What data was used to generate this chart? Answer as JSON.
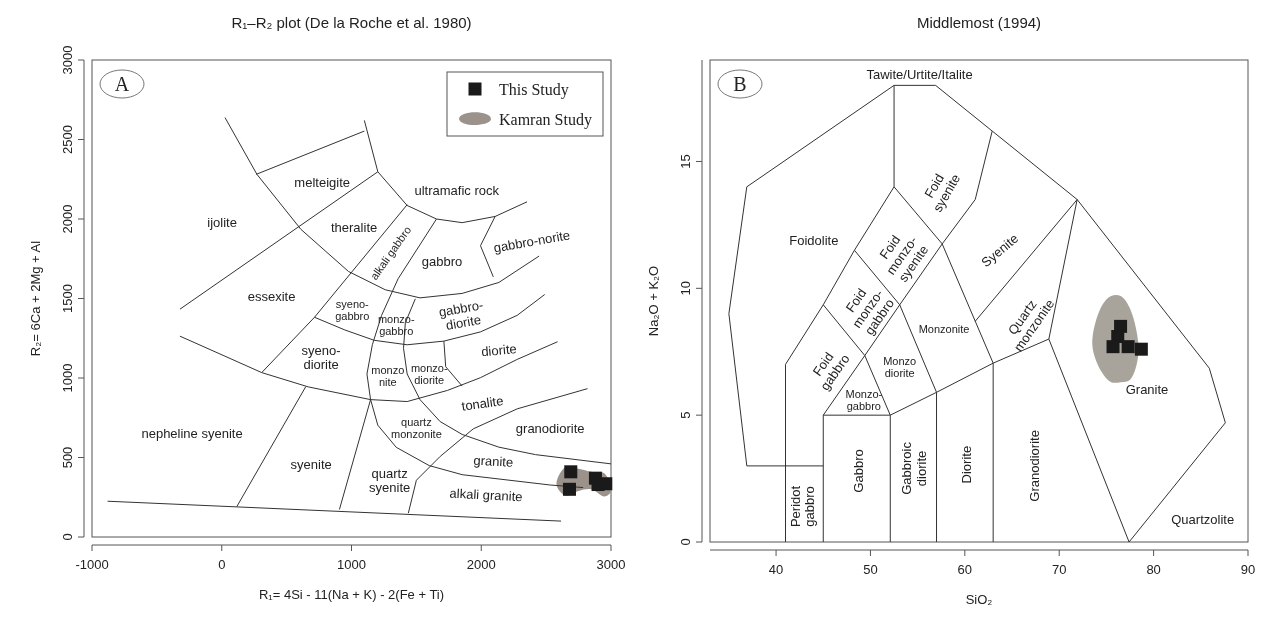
{
  "chart_data": [
    {
      "type": "scatter",
      "title": "R₁–R₂ plot (De la Roche et al. 1980)",
      "xlabel": "R₁= 4Si - 11(Na + K) - 2(Fe + Ti)",
      "ylabel": "R₂= 6Ca + 2Mg + Al",
      "xlim": [
        -1000,
        3000
      ],
      "ylim": [
        0,
        3000
      ],
      "xticks": [
        -1000,
        0,
        1000,
        2000,
        3000
      ],
      "yticks": [
        0,
        500,
        1000,
        1500,
        2000,
        2500,
        3000
      ],
      "legend": "top right",
      "series": [
        {
          "name": "This Study",
          "color": "#1a1a1a",
          "marker": "square",
          "x": [
            2690,
            2680,
            2880,
            2900,
            2960
          ],
          "values": [
            410,
            300,
            370,
            330,
            335
          ]
        },
        {
          "type": "area",
          "name": "Kamran Study",
          "color": "#9a928b",
          "x": [
            2580,
            2650,
            2750,
            2850,
            2950,
            3000,
            2950,
            2850,
            2750,
            2650
          ],
          "values": [
            330,
            440,
            430,
            410,
            400,
            290,
            255,
            300,
            290,
            260
          ]
        },
        {
          "type": "line",
          "color": "#333333",
          "x": [
            -880,
            2615
          ],
          "values": [
            225,
            100
          ]
        },
        {
          "type": "line",
          "color": "#333333",
          "x": [
            25,
            271,
            610,
            977,
            1260,
            1528,
            1853,
            2136,
            2446
          ],
          "values": [
            2638,
            2281,
            1935,
            1670,
            1555,
            1504,
            1532,
            1601,
            1767
          ]
        },
        {
          "type": "line",
          "color": "#333333",
          "x": [
            1099,
            1203,
            1429,
            1655,
            1853,
            2107,
            2353
          ],
          "values": [
            2620,
            2297,
            2085,
            2000,
            1977,
            2016,
            2108
          ]
        },
        {
          "type": "line",
          "color": "#333333",
          "x": [
            266,
            1099
          ],
          "values": [
            2281,
            2553
          ]
        },
        {
          "type": "line",
          "color": "#333333",
          "x": [
            -322,
            1203
          ],
          "values": [
            1433,
            2297
          ]
        },
        {
          "type": "line",
          "color": "#333333",
          "x": [
            308,
            715,
            1429
          ],
          "values": [
            1034,
            1382,
            2090
          ]
        },
        {
          "type": "line",
          "color": "#333333",
          "x": [
            1655,
            1359,
            1232,
            1161,
            1119,
            1147,
            1203,
            1345,
            1599,
            1853,
            2531,
            2785
          ],
          "values": [
            2000,
            1624,
            1394,
            1210,
            1025,
            864,
            703,
            564,
            449,
            392,
            327,
            311
          ]
        },
        {
          "type": "line",
          "color": "#333333",
          "x": [
            715,
            949,
            1175,
            1429,
            1712,
            1994,
            2277,
            2489
          ],
          "values": [
            1382,
            1302,
            1237,
            1209,
            1232,
            1290,
            1394,
            1525
          ]
        },
        {
          "type": "line",
          "color": "#333333",
          "x": [
            1492,
            1415,
            1401,
            1429,
            1528,
            1683,
            1853,
            2136,
            2418,
            3000
          ],
          "values": [
            1498,
            1348,
            1187,
            1025,
            864,
            726,
            645,
            565,
            518,
            460
          ]
        },
        {
          "type": "line",
          "color": "#333333",
          "x": [
            -322,
            17,
            308,
            667,
            1147,
            1429,
            1740,
            1994,
            2277,
            2588
          ],
          "values": [
            1263,
            1140,
            1034,
            944,
            864,
            852,
            922,
            1002,
            1117,
            1228
          ]
        },
        {
          "type": "line",
          "color": "#333333",
          "x": [
            116,
            647
          ],
          "values": [
            191,
            945
          ]
        },
        {
          "type": "line",
          "color": "#333333",
          "x": [
            907,
            1147
          ],
          "values": [
            173,
            864
          ]
        },
        {
          "type": "line",
          "color": "#333333",
          "x": [
            1438,
            1500,
            1684,
            1938,
            2277,
            2819
          ],
          "values": [
            150,
            357,
            507,
            680,
            806,
            933
          ]
        },
        {
          "type": "line",
          "color": "#333333",
          "x": [
            1712,
            1726,
            1853
          ],
          "values": [
            1232,
            1071,
            949
          ]
        },
        {
          "type": "line",
          "color": "#333333",
          "x": [
            2107,
            1994,
            2093
          ],
          "values": [
            2016,
            1832,
            1636
          ]
        }
      ],
      "annotations": [
        "A",
        "melteigite",
        "ultramafic rock",
        "ijolite",
        "theralite",
        "alkali gabbro",
        "gabbro",
        "gabbro-norite",
        "essexite",
        "syeno-\ngabbro",
        "monzo-\ngabbro",
        "gabbro-\ndiorite",
        "syeno-\ndiorite",
        "diorite",
        "monzo\nnite",
        "monzo-\ndiorite",
        "tonalite",
        "quartz\nmonzonite",
        "granodiorite",
        "nepheline syenite",
        "syenite",
        "quartz\nsyenite",
        "granite",
        "alkali granite"
      ]
    },
    {
      "type": "scatter",
      "title": "Middlemost (1994)",
      "xlabel": "SiO₂",
      "ylabel": "Na₂O + K₂O",
      "xlim": [
        33,
        90
      ],
      "ylim": [
        0,
        19
      ],
      "xticks": [
        40,
        50,
        60,
        70,
        80,
        90
      ],
      "yticks": [
        0,
        5,
        10,
        15
      ],
      "series": [
        {
          "type": "area",
          "color": "#a8a49c",
          "x": [
            73.5,
            74.5,
            75.5,
            76.5,
            77.5,
            78.4,
            77.5,
            76.5,
            75.5,
            74.5
          ],
          "values": [
            7.8,
            9.3,
            9.7,
            9.7,
            9.2,
            7.5,
            6.4,
            6.3,
            6.3,
            6.7
          ]
        },
        {
          "type": "line",
          "color": "#333333",
          "x": [
            36.9,
            35.0,
            36.9,
            52.5,
            56.9,
            62.9,
            71.9,
            85.9,
            87.6,
            77.4
          ],
          "values": [
            3.0,
            9.0,
            14.0,
            18.0,
            18.0,
            16.2,
            13.5,
            6.85,
            4.7,
            0
          ]
        },
        {
          "type": "line",
          "color": "#333333",
          "x": [
            36.9,
            45
          ],
          "values": [
            3,
            3
          ]
        },
        {
          "type": "line",
          "color": "#333333",
          "x": [
            41,
            41,
            45,
            48.3,
            52.5,
            52.5
          ],
          "values": [
            0,
            7,
            9.35,
            11.5,
            14,
            18
          ]
        },
        {
          "type": "line",
          "color": "#333333",
          "x": [
            45,
            45,
            52.1
          ],
          "values": [
            0,
            5,
            5
          ]
        },
        {
          "type": "line",
          "color": "#333333",
          "x": [
            45,
            49.4,
            53.1,
            57.6,
            61.1,
            62.9
          ],
          "values": [
            5,
            7.35,
            9.35,
            11.75,
            13.5,
            16.2
          ]
        },
        {
          "type": "line",
          "color": "#333333",
          "x": [
            52.5,
            57.6,
            63,
            63
          ],
          "values": [
            14,
            11.75,
            7.05,
            0
          ]
        },
        {
          "type": "line",
          "color": "#333333",
          "x": [
            48.3,
            53.1,
            57,
            57
          ],
          "values": [
            11.5,
            9.35,
            5.9,
            0
          ]
        },
        {
          "type": "line",
          "color": "#333333",
          "x": [
            45,
            49.4,
            52.1,
            52.1
          ],
          "values": [
            9.35,
            7.35,
            5,
            0
          ]
        },
        {
          "type": "line",
          "color": "#333333",
          "x": [
            52.1,
            57,
            63,
            68.9,
            71.9
          ],
          "values": [
            5,
            5.9,
            7.05,
            8,
            13.5
          ]
        },
        {
          "type": "line",
          "color": "#333333",
          "x": [
            61.1,
            71.9
          ],
          "values": [
            8.7,
            13.5
          ]
        },
        {
          "type": "line",
          "color": "#333333",
          "x": [
            68.9,
            77.4
          ],
          "values": [
            8,
            0
          ]
        },
        {
          "color": "#1a1a1a",
          "marker": "square",
          "x": [
            76.5,
            76.2,
            75.7,
            77.3,
            78.7
          ],
          "values": [
            8.5,
            8.1,
            7.7,
            7.7,
            7.6
          ]
        }
      ],
      "annotations": [
        "B",
        "Tawite/Urtite/Italite",
        "Foidolite",
        "Foid\nsyenite",
        "Foid\nmonzo-\nsyenite",
        "Syenite",
        "Foid\nmonzo-\ngabbro",
        "Monzonite",
        "Quartz\nmonzonite",
        "Foid\ngabbro",
        "Monzo\ndiorite",
        "Monzo-\ngabbro",
        "Granite",
        "Gabbro",
        "Gabbroic\ndiorite",
        "Diorite",
        "Granodiorite",
        "Peridot\ngabbro",
        "Quartzolite"
      ]
    }
  ]
}
